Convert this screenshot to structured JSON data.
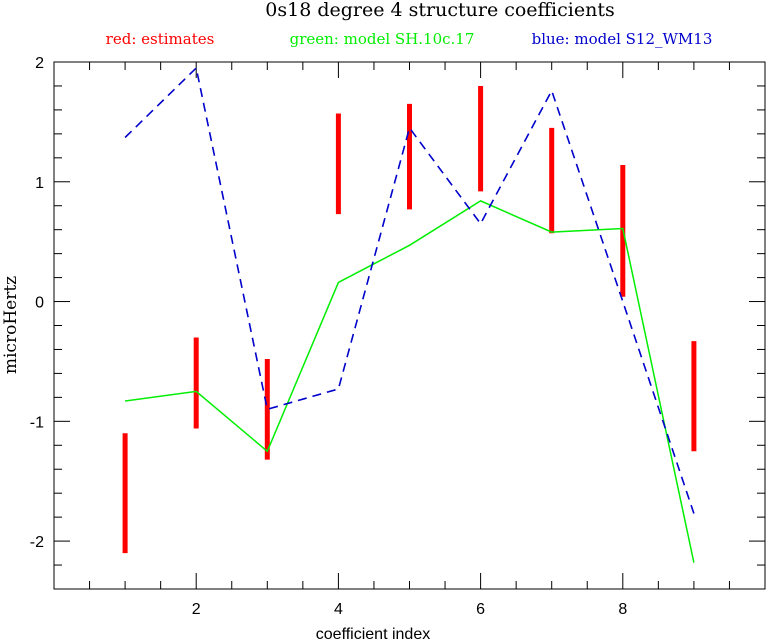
{
  "chart_data": {
    "type": "line",
    "title": "0s18 degree 4 structure coefficients",
    "xlabel": "coefficient index",
    "ylabel": "microHertz",
    "xlim": [
      0,
      10
    ],
    "ylim": [
      -2.4,
      2.0
    ],
    "x_ticks": [
      2,
      4,
      6,
      8
    ],
    "y_ticks": [
      -2,
      -1,
      0,
      1,
      2
    ],
    "x_tick_labels": [
      "2",
      "4",
      "6",
      "8"
    ],
    "y_tick_labels": [
      "-2",
      "-1",
      "0",
      "1",
      "2"
    ],
    "legend_position": "top",
    "grid": false,
    "series": [
      {
        "name": "red: estimates",
        "type": "errorbar",
        "color": "#ff0000",
        "x": [
          1,
          2,
          3,
          4,
          5,
          6,
          7,
          8,
          9
        ],
        "y_low": [
          -2.1,
          -1.06,
          -1.32,
          0.73,
          0.77,
          0.92,
          0.57,
          0.04,
          -1.25
        ],
        "y_high": [
          -1.1,
          -0.3,
          -0.48,
          1.57,
          1.65,
          1.8,
          1.45,
          1.14,
          -0.33
        ]
      },
      {
        "name": "green: model SH.10c.17",
        "type": "line",
        "color": "#00ee00",
        "x": [
          1,
          2,
          3,
          4,
          5,
          6,
          7,
          8,
          9
        ],
        "y": [
          -0.83,
          -0.75,
          -1.25,
          0.16,
          0.47,
          0.84,
          0.58,
          0.61,
          -2.18
        ]
      },
      {
        "name": "blue: model S12_WM13",
        "type": "dashed-line",
        "color": "#0000cc",
        "x": [
          1,
          2,
          3,
          4,
          5,
          6,
          7,
          8,
          9
        ],
        "y": [
          1.37,
          1.95,
          -0.9,
          -0.73,
          1.45,
          0.65,
          1.76,
          0.0,
          -1.77
        ]
      }
    ]
  }
}
